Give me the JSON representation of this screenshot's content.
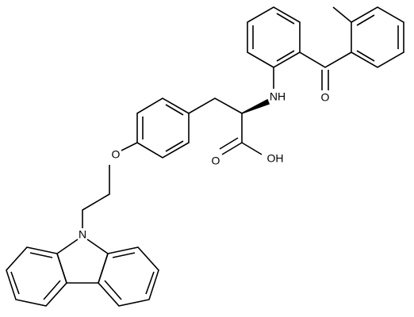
{
  "labels": [
    "N",
    "O",
    "NH",
    "O",
    "O",
    "OH"
  ]
}
